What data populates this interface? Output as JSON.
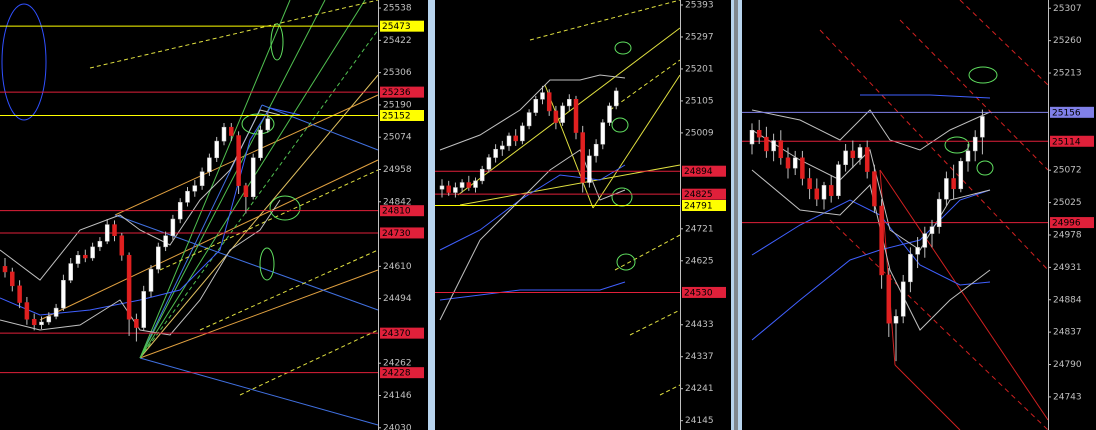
{
  "panels": [
    {
      "ylim": [
        24022,
        25567
      ],
      "yticks": [
        25538,
        25422,
        25306,
        25190,
        25074,
        24958,
        24842,
        24610,
        24494,
        24262,
        24146,
        24030
      ],
      "tags": [
        {
          "price": 25473,
          "color": "#ffff00"
        },
        {
          "price": 25236,
          "color": "#e0203a"
        },
        {
          "price": 25152,
          "color": "#ffff00"
        },
        {
          "price": 24810,
          "color": "#e0203a"
        },
        {
          "price": 24730,
          "color": "#e0203a"
        },
        {
          "price": 24370,
          "color": "#e0203a"
        },
        {
          "price": 24228,
          "color": "#e0203a"
        }
      ],
      "candles": [
        [
          24610,
          24640,
          24570,
          24590
        ],
        [
          24590,
          24605,
          24520,
          24540
        ],
        [
          24540,
          24560,
          24460,
          24480
        ],
        [
          24480,
          24500,
          24400,
          24420
        ],
        [
          24420,
          24440,
          24380,
          24400
        ],
        [
          24400,
          24430,
          24385,
          24410
        ],
        [
          24410,
          24445,
          24400,
          24430
        ],
        [
          24430,
          24475,
          24420,
          24460
        ],
        [
          24460,
          24580,
          24450,
          24560
        ],
        [
          24560,
          24640,
          24550,
          24620
        ],
        [
          24620,
          24665,
          24605,
          24650
        ],
        [
          24650,
          24670,
          24625,
          24640
        ],
        [
          24640,
          24695,
          24630,
          24680
        ],
        [
          24680,
          24715,
          24665,
          24700
        ],
        [
          24700,
          24780,
          24690,
          24760
        ],
        [
          24760,
          24775,
          24700,
          24720
        ],
        [
          24720,
          24730,
          24630,
          24650
        ],
        [
          24650,
          24660,
          24360,
          24420
        ],
        [
          24420,
          24440,
          24340,
          24390
        ],
        [
          24390,
          24540,
          24380,
          24520
        ],
        [
          24520,
          24615,
          24500,
          24600
        ],
        [
          24600,
          24695,
          24585,
          24680
        ],
        [
          24680,
          24735,
          24665,
          24720
        ],
        [
          24720,
          24795,
          24705,
          24780
        ],
        [
          24780,
          24855,
          24765,
          24840
        ],
        [
          24840,
          24895,
          24825,
          24880
        ],
        [
          24880,
          24920,
          24860,
          24900
        ],
        [
          24900,
          24965,
          24885,
          24950
        ],
        [
          24950,
          25015,
          24935,
          25000
        ],
        [
          25000,
          25075,
          24985,
          25060
        ],
        [
          25060,
          25125,
          25045,
          25110
        ],
        [
          25110,
          25125,
          25060,
          25080
        ],
        [
          25080,
          25095,
          24870,
          24900
        ],
        [
          24900,
          24910,
          24800,
          24860
        ],
        [
          24860,
          25015,
          24850,
          25000
        ],
        [
          25000,
          25115,
          24990,
          25100
        ],
        [
          25100,
          25160,
          25090,
          25140
        ]
      ]
    },
    {
      "ylim": [
        24117,
        25408
      ],
      "yticks": [
        25393,
        25297,
        25201,
        25105,
        25009,
        24721,
        24625,
        24433,
        24337,
        24241,
        24145
      ],
      "tags": [
        {
          "price": 24894,
          "color": "#e0203a"
        },
        {
          "price": 24825,
          "color": "#e0203a"
        },
        {
          "price": 24791,
          "color": "#ffff00"
        },
        {
          "price": 24530,
          "color": "#e0203a"
        }
      ],
      "candles": [
        [
          24840,
          24870,
          24815,
          24850
        ],
        [
          24850,
          24865,
          24820,
          24830
        ],
        [
          24830,
          24860,
          24815,
          24845
        ],
        [
          24845,
          24870,
          24830,
          24860
        ],
        [
          24860,
          24880,
          24835,
          24845
        ],
        [
          24845,
          24875,
          24830,
          24865
        ],
        [
          24865,
          24910,
          24855,
          24900
        ],
        [
          24900,
          24945,
          24890,
          24935
        ],
        [
          24935,
          24975,
          24920,
          24960
        ],
        [
          24960,
          24985,
          24940,
          24970
        ],
        [
          24970,
          25010,
          24955,
          25000
        ],
        [
          25000,
          25020,
          24970,
          24985
        ],
        [
          24985,
          25040,
          24975,
          25030
        ],
        [
          25030,
          25080,
          25020,
          25070
        ],
        [
          25070,
          25120,
          25060,
          25110
        ],
        [
          25110,
          25150,
          25095,
          25130
        ],
        [
          25130,
          25140,
          25060,
          25075
        ],
        [
          25075,
          25090,
          25020,
          25040
        ],
        [
          25040,
          25100,
          25030,
          25090
        ],
        [
          25090,
          25125,
          25075,
          25110
        ],
        [
          25110,
          25120,
          24990,
          25010
        ],
        [
          25010,
          25030,
          24830,
          24860
        ],
        [
          24860,
          24960,
          24845,
          24940
        ],
        [
          24940,
          24990,
          24920,
          24975
        ],
        [
          24975,
          25050,
          24960,
          25040
        ],
        [
          25040,
          25100,
          25030,
          25090
        ],
        [
          25090,
          25145,
          25080,
          25135
        ]
      ]
    },
    {
      "ylim": [
        24695,
        25319
      ],
      "yticks": [
        25307,
        25260,
        25213,
        25072,
        25025,
        24978,
        24931,
        24884,
        24837,
        24790,
        24743
      ],
      "tags": [
        {
          "price": 25156,
          "color": "#8080e8"
        },
        {
          "price": 25114,
          "color": "#e0203a"
        },
        {
          "price": 24996,
          "color": "#e0203a"
        }
      ],
      "candles": [
        [
          25110,
          25140,
          25095,
          25130
        ],
        [
          25130,
          25145,
          25110,
          25120
        ],
        [
          25120,
          25135,
          25090,
          25100
        ],
        [
          25100,
          25125,
          25085,
          25115
        ],
        [
          25115,
          25130,
          25080,
          25090
        ],
        [
          25090,
          25105,
          25060,
          25075
        ],
        [
          25075,
          25100,
          25065,
          25090
        ],
        [
          25090,
          25100,
          25050,
          25060
        ],
        [
          25060,
          25075,
          25030,
          25045
        ],
        [
          25045,
          25060,
          25020,
          25030
        ],
        [
          25030,
          25055,
          25015,
          25050
        ],
        [
          25050,
          25065,
          25025,
          25035
        ],
        [
          25035,
          25085,
          25030,
          25080
        ],
        [
          25080,
          25110,
          25070,
          25100
        ],
        [
          25100,
          25115,
          25075,
          25090
        ],
        [
          25090,
          25110,
          25080,
          25105
        ],
        [
          25105,
          25115,
          25060,
          25070
        ],
        [
          25070,
          25080,
          25010,
          25020
        ],
        [
          25020,
          25030,
          24900,
          24920
        ],
        [
          24920,
          24930,
          24830,
          24850
        ],
        [
          24850,
          24870,
          24795,
          24860
        ],
        [
          24860,
          24920,
          24850,
          24910
        ],
        [
          24910,
          24960,
          24895,
          24950
        ],
        [
          24950,
          24975,
          24930,
          24960
        ],
        [
          24960,
          24990,
          24945,
          24980
        ],
        [
          24980,
          25000,
          24960,
          24990
        ],
        [
          24990,
          25040,
          24980,
          25030
        ],
        [
          25030,
          25070,
          25020,
          25060
        ],
        [
          25060,
          25080,
          25030,
          25045
        ],
        [
          25045,
          25090,
          25040,
          25085
        ],
        [
          25085,
          25110,
          25070,
          25100
        ],
        [
          25100,
          25130,
          25085,
          25120
        ],
        [
          25120,
          25160,
          25095,
          25150
        ]
      ]
    }
  ]
}
